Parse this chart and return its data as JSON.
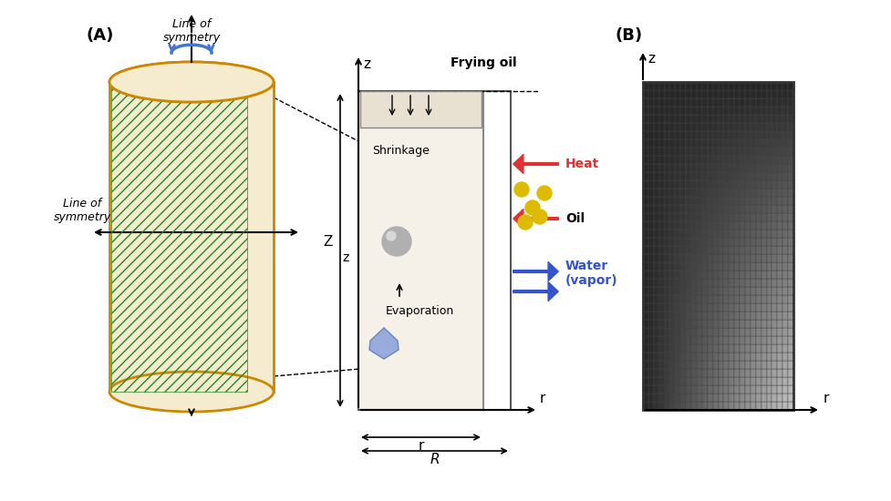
{
  "bg_color": "#ffffff",
  "panel_bg": "#f5f0e8",
  "cylinder_color": "#f5ecd0",
  "cylinder_edge": "#cc8800",
  "hatch_color": "#228822",
  "arrow_red": "#dd3333",
  "arrow_blue": "#3355cc",
  "oil_yellow": "#ddbb00",
  "label_A": "(A)",
  "label_B": "(B)",
  "label_frying_oil": "Frying oil",
  "label_heat": "Heat",
  "label_oil": "Oil",
  "label_water": "Water\n(vapor)",
  "label_shrinkage": "Shrinkage",
  "label_evaporation": "Evaporation",
  "label_line_sym1": "Line of\nsymmetry",
  "label_line_sym2": "Line of\nsymmetry",
  "label_z": "z",
  "label_r": "r",
  "label_R": "R",
  "label_Z_cap": "Z",
  "label_z_small": "z"
}
